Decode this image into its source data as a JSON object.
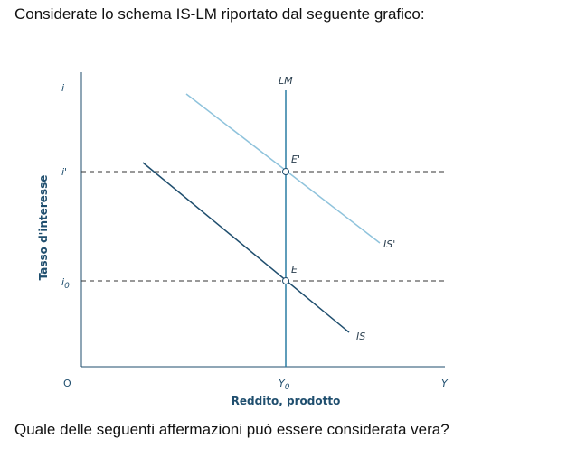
{
  "question_intro": "Considerate lo schema IS-LM riportato dal seguente grafico:",
  "question_prompt": "Quale delle seguenti affermazioni può essere considerata vera?",
  "diagram": {
    "y_axis_title": "Tasso d'interesse",
    "x_axis_title": "Reddito, prodotto",
    "y_axis_symbol": "i",
    "x_axis_symbol": "Y",
    "origin_label": "O",
    "y_tick_high": "i'",
    "y_tick_low": "i0",
    "x_tick": "Y0",
    "lm_label": "LM",
    "is_label": "IS",
    "is_prime_label": "IS'",
    "equilibrium_low": "E",
    "equilibrium_high": "E'",
    "colors": {
      "axis": "#1f4e6e",
      "lm": "#2a7da3",
      "is": "#1f4e6e",
      "is_prime": "#8fc3dc",
      "dashed": "#333333"
    }
  }
}
